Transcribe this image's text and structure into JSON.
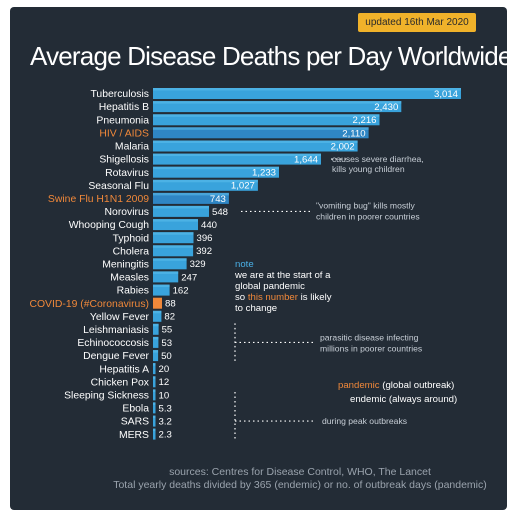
{
  "badge": "updated 16th Mar 2020",
  "title": "Average Disease Deaths per Day Worldwide",
  "chart_data": {
    "type": "bar",
    "orientation": "horizontal",
    "title": "Average Disease Deaths per Day Worldwide",
    "categories": [
      "Tuberculosis",
      "Hepatitis B",
      "Pneumonia",
      "HIV / AIDS",
      "Malaria",
      "Shigellosis",
      "Rotavirus",
      "Seasonal Flu",
      "Swine Flu H1N1 2009",
      "Norovirus",
      "Whooping Cough",
      "Typhoid",
      "Cholera",
      "Meningitis",
      "Measles",
      "Rabies",
      "COVID-19 (#Coronavirus)",
      "Yellow Fever",
      "Leishmaniasis",
      "Echinococcosis",
      "Dengue Fever",
      "Hepatitis A",
      "Chicken Pox",
      "Sleeping Sickness",
      "Ebola",
      "SARS",
      "MERS"
    ],
    "values": [
      3014,
      2430,
      2216,
      2110,
      2002,
      1644,
      1233,
      1027,
      743,
      548,
      440,
      396,
      392,
      329,
      247,
      162,
      88,
      82,
      55,
      53,
      50,
      20,
      12,
      10,
      5.3,
      3.2,
      2.3
    ],
    "value_labels": [
      "3,014",
      "2,430",
      "2,216",
      "2,110",
      "2,002",
      "1,644",
      "1,233",
      "1,027",
      "743",
      "548",
      "440",
      "396",
      "392",
      "329",
      "247",
      "162",
      "88",
      "82",
      "55",
      "53",
      "50",
      "20",
      "12",
      "10",
      "5.3",
      "3.2",
      "2.3"
    ],
    "highlighted": [
      "HIV / AIDS",
      "Swine Flu H1N1 2009",
      "COVID-19 (#Coronavirus)"
    ],
    "colors": {
      "bar": "#39a3dc",
      "bar_light": "#5cc0ec",
      "highlight": "#f0883a",
      "background": "#232c36",
      "blue_text": "#4ab0e6"
    }
  },
  "annotations": {
    "shigellosis": "causes severe diarrhea,\nkills young children",
    "norovirus": "\"vomiting bug\" kills mostly\nchildren in poorer countries",
    "note_head": "note",
    "note_lines": [
      "we are at the start of a",
      "global pandemic",
      "so ",
      "this number",
      " is likely",
      "to change"
    ],
    "parasitic": "parasitic disease infecting\nmillions in poorer countries",
    "legend_pandemic_key": "pandemic",
    "legend_pandemic_desc": "(global outbreak)",
    "legend_endemic_key": "endemic",
    "legend_endemic_desc": "(always around)",
    "peak": "during peak outbreaks"
  },
  "sources": {
    "line1": "sources: Centres for Disease Control, WHO, The Lancet",
    "line2": "Total yearly deaths divided by 365 (endemic) or no. of outbreak days (pandemic)"
  }
}
